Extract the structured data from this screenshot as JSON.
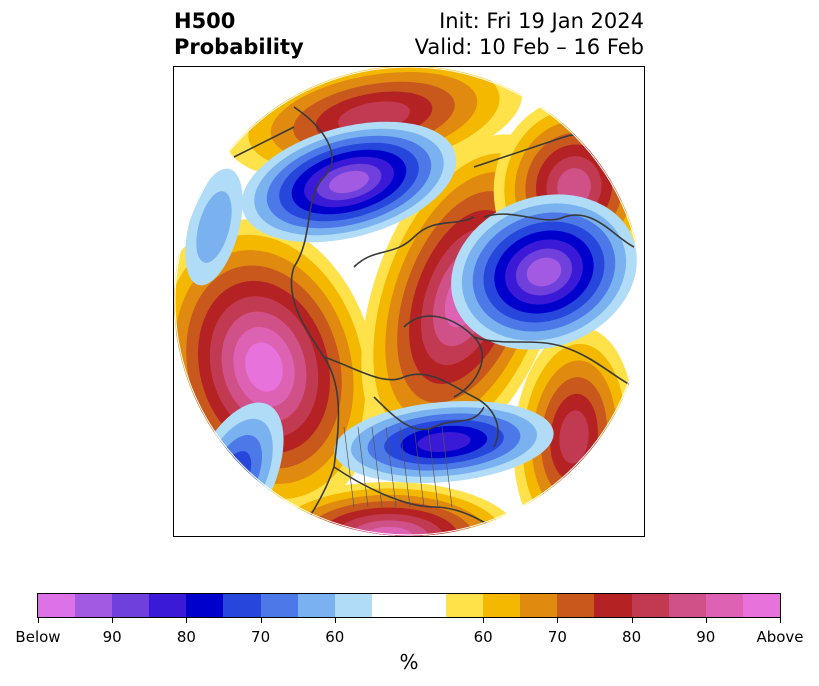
{
  "title": {
    "left_line1": "H500",
    "left_line2": "Probability",
    "right_line1": "Init: Fri 19 Jan 2024",
    "right_line2": "Valid: 10 Feb – 16 Feb"
  },
  "colorbar": {
    "units": "%",
    "segments": [
      {
        "color": "#dc72e6"
      },
      {
        "color": "#a25ae2"
      },
      {
        "color": "#7040dc"
      },
      {
        "color": "#3a1ad6"
      },
      {
        "color": "#0000cc"
      },
      {
        "color": "#2646dc"
      },
      {
        "color": "#4c78e8"
      },
      {
        "color": "#7ab2f0"
      },
      {
        "color": "#b0dcf8"
      },
      {
        "color": "#ffffff"
      },
      {
        "color": "#ffffff"
      },
      {
        "color": "#ffe24a"
      },
      {
        "color": "#f4b800"
      },
      {
        "color": "#e08a10"
      },
      {
        "color": "#c8581c"
      },
      {
        "color": "#b42224"
      },
      {
        "color": "#c23a52"
      },
      {
        "color": "#d05088"
      },
      {
        "color": "#de62b4"
      },
      {
        "color": "#e872dc"
      }
    ],
    "ticks": [
      "Below",
      "90",
      "80",
      "70",
      "60",
      "60",
      "70",
      "80",
      "90",
      "Above"
    ]
  },
  "map": {
    "colors": {
      "below": [
        "#b0dcf8",
        "#7ab2f0",
        "#4c78e8",
        "#2646dc",
        "#0000cc",
        "#3a1ad6",
        "#7040dc",
        "#a25ae2"
      ],
      "above": [
        "#ffe24a",
        "#f4b800",
        "#e08a10",
        "#c8581c",
        "#b42224",
        "#c23a52",
        "#d05088",
        "#de62b4",
        "#e872dc"
      ],
      "coast": "#3a3a3a",
      "border": "#555555"
    }
  }
}
